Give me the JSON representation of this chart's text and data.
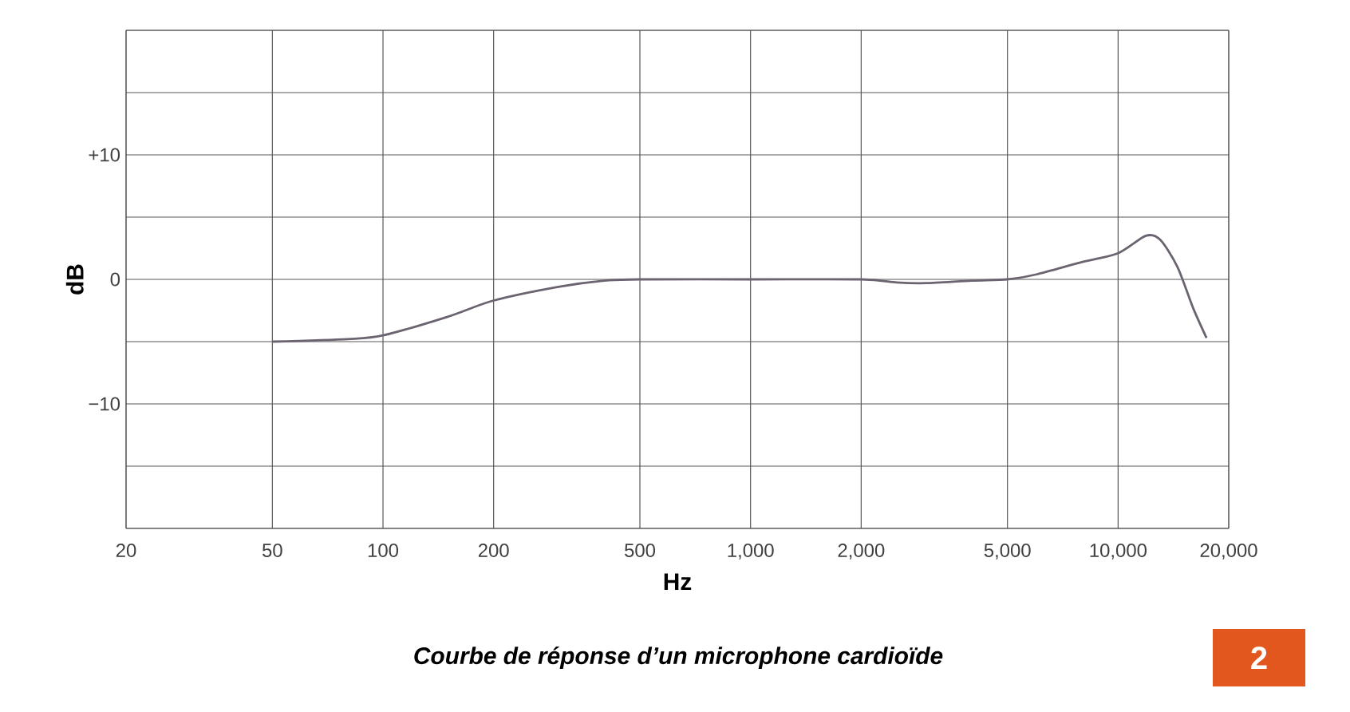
{
  "chart_data": {
    "type": "line",
    "xlabel": "Hz",
    "ylabel": "dB",
    "annotations": [
      "Courbe de réponse d’un microphone cardioïde",
      "2"
    ],
    "log": "x",
    "grid": true,
    "marker": "none",
    "xlim": [
      20,
      20000
    ],
    "ylim": [
      -20,
      20
    ],
    "xticks": [
      20,
      50,
      100,
      200,
      500,
      {
        "value": 1000,
        "label": "1,000"
      },
      {
        "value": 2000,
        "label": "2,000"
      },
      {
        "value": 5000,
        "label": "5,000"
      },
      {
        "value": 10000,
        "label": "10,000"
      },
      {
        "value": 20000,
        "label": "20,000"
      }
    ],
    "yticks": [
      {
        "value": -20,
        "label": null
      },
      {
        "value": -15,
        "label": null
      },
      {
        "value": -10,
        "label": "−10"
      },
      {
        "value": -5,
        "label": null
      },
      0,
      {
        "value": 5,
        "label": null
      },
      {
        "value": 10,
        "label": "+10"
      },
      {
        "value": 15,
        "label": null
      },
      {
        "value": 20,
        "label": null
      }
    ],
    "series": [
      {
        "color": "#6b6470",
        "x": [
          50,
          80,
          100,
          150,
          200,
          300,
          400,
          500,
          1000,
          2000,
          2500,
          3000,
          4000,
          5000,
          6000,
          8000,
          10000,
          11900,
          13000,
          14500,
          16000,
          17400
        ],
        "values": [
          -5,
          -4.8,
          -4.5,
          -3,
          -1.7,
          -0.6,
          -0.1,
          0,
          0,
          0,
          -0.25,
          -0.3,
          -0.1,
          0,
          0.4,
          1.4,
          2.1,
          3.5,
          3.2,
          1,
          -2.3,
          -4.7
        ]
      }
    ]
  }
}
